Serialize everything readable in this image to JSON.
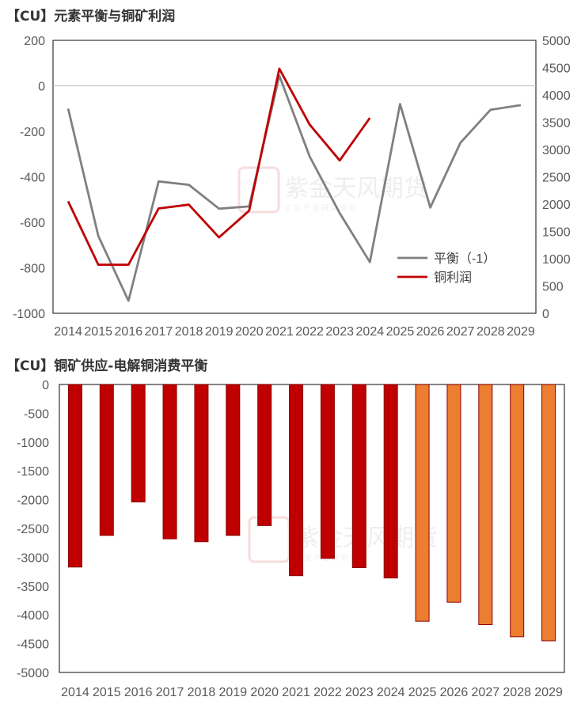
{
  "chart_data": [
    {
      "type": "line",
      "title": "【CU】元素平衡与铜矿利润",
      "categories": [
        "2014",
        "2015",
        "2016",
        "2017",
        "2018",
        "2019",
        "2020",
        "2021",
        "2022",
        "2023",
        "2024",
        "2025",
        "2026",
        "2027",
        "2028",
        "2029"
      ],
      "y_left": {
        "lim": [
          -1000,
          200
        ],
        "ticks": [
          "200",
          "0",
          "-200",
          "-400",
          "-600",
          "-800",
          "-1000"
        ],
        "tick_values": [
          200,
          0,
          -200,
          -400,
          -600,
          -800,
          -1000
        ]
      },
      "y_right": {
        "lim": [
          0,
          5000
        ],
        "ticks": [
          "5000",
          "4500",
          "4000",
          "3500",
          "3000",
          "2500",
          "2000",
          "1500",
          "1000",
          "500",
          "0"
        ],
        "tick_values": [
          5000,
          4500,
          4000,
          3500,
          3000,
          2500,
          2000,
          1500,
          1000,
          500,
          0
        ]
      },
      "series": [
        {
          "name": "平衡（-1）",
          "axis": "left",
          "color": "#808080",
          "values": [
            -100,
            -660,
            -945,
            -420,
            -435,
            -540,
            -530,
            45,
            -310,
            -560,
            -775,
            -80,
            -535,
            -250,
            -105,
            -85
          ]
        },
        {
          "name": "铜利润",
          "axis": "right",
          "color": "#c00000",
          "values": [
            2050,
            890,
            890,
            1920,
            1990,
            1390,
            1880,
            4480,
            3460,
            2800,
            3580,
            null,
            null,
            null,
            null,
            null
          ]
        }
      ],
      "zero_line": true,
      "legend": "bottom-right",
      "watermark": {
        "text": "紫金天风期货",
        "subtext": "立 足 产 业 研 究 驱 动"
      }
    },
    {
      "type": "bar",
      "title": "【CU】铜矿供应-电解铜消费平衡",
      "categories": [
        "2014",
        "2015",
        "2016",
        "2017",
        "2018",
        "2019",
        "2020",
        "2021",
        "2022",
        "2023",
        "2024",
        "2025",
        "2026",
        "2027",
        "2028",
        "2029"
      ],
      "values": [
        -3170,
        -2620,
        -2040,
        -2680,
        -2730,
        -2620,
        -2450,
        -3320,
        -3020,
        -3180,
        -3360,
        -4110,
        -3780,
        -4170,
        -4380,
        -4450
      ],
      "bar_colors": [
        "#c00000",
        "#c00000",
        "#c00000",
        "#c00000",
        "#c00000",
        "#c00000",
        "#c00000",
        "#c00000",
        "#c00000",
        "#c00000",
        "#c00000",
        "#ed7d31",
        "#ed7d31",
        "#ed7d31",
        "#ed7d31",
        "#ed7d31"
      ],
      "ylim": [
        -5000,
        0
      ],
      "y_ticks": [
        "0",
        "-500",
        "-1000",
        "-1500",
        "-2000",
        "-2500",
        "-3000",
        "-3500",
        "-4000",
        "-4500",
        "-5000"
      ],
      "y_tick_values": [
        0,
        -500,
        -1000,
        -1500,
        -2000,
        -2500,
        -3000,
        -3500,
        -4000,
        -4500,
        -5000
      ],
      "watermark": {
        "text": "紫金天风期货",
        "subtext": "立 足 产 业 研 究 驱 动"
      }
    }
  ]
}
